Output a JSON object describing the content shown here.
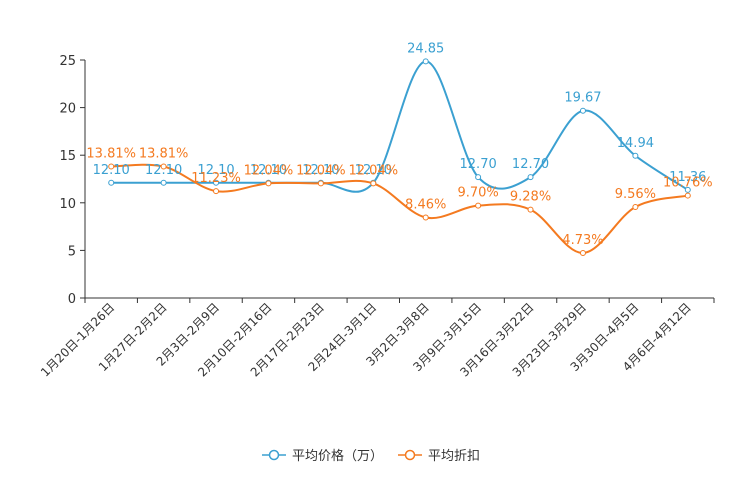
{
  "chart_data": {
    "type": "line",
    "categories": [
      "1月20日-1月26日",
      "1月27日-2月2日",
      "2月3日-2月9日",
      "2月10日-2月16日",
      "2月17日-2月23日",
      "2月24日-3月1日",
      "3月2日-3月8日",
      "3月9日-3月15日",
      "3月16日-3月22日",
      "3月23日-3月29日",
      "3月30日-4月5日",
      "4月6日-4月12日"
    ],
    "ylim": [
      0,
      25
    ],
    "yticks": [
      0,
      5,
      10,
      15,
      20,
      25
    ],
    "grid": false,
    "legend_position": "bottom-center",
    "series": [
      {
        "name": "平均价格（万）",
        "color": "#3ba0d1",
        "values": [
          12.1,
          12.1,
          12.1,
          12.1,
          12.1,
          12.1,
          24.85,
          12.7,
          12.7,
          19.67,
          14.94,
          11.36
        ],
        "labels": [
          "12.10",
          "12.10",
          "12.10",
          "12.10",
          "12.10",
          "12.10",
          "24.85",
          "12.70",
          "12.70",
          "19.67",
          "14.94",
          "11.36"
        ]
      },
      {
        "name": "平均折扣",
        "color": "#f47a20",
        "values": [
          13.81,
          13.81,
          11.23,
          12.04,
          12.04,
          12.04,
          8.46,
          9.7,
          9.28,
          4.73,
          9.56,
          10.76
        ],
        "labels": [
          "13.81%",
          "13.81%",
          "11.23%",
          "12.04%",
          "12.04%",
          "12.04%",
          "8.46%",
          "9.70%",
          "9.28%",
          "4.73%",
          "9.56%",
          "10.76%"
        ]
      }
    ]
  }
}
